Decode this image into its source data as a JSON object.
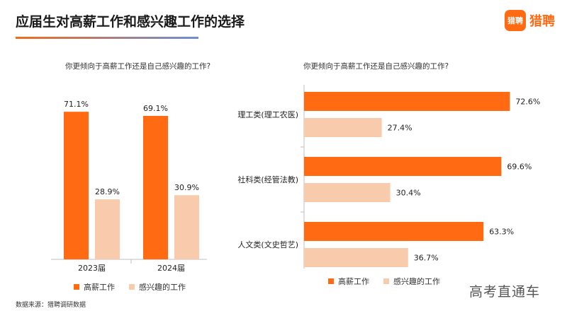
{
  "page": {
    "title": "应届生对高薪工作和感兴趣工作的选择",
    "logo_mark": "猎聘",
    "logo_text": "猎聘",
    "source": "数据来源：猎聘调研数据",
    "watermark": "高考直通车"
  },
  "colors": {
    "high_pay": "#ff6a13",
    "interest": "#f8cbad",
    "axis": "#bfbfbf"
  },
  "legend": {
    "series": [
      "高薪工作",
      "感兴趣的工作"
    ]
  },
  "chart_data": [
    {
      "type": "bar",
      "title": "你更倾向于高薪工作还是自己感兴趣的工作?",
      "categories": [
        "2023届",
        "2024届"
      ],
      "series": [
        {
          "name": "高薪工作",
          "values": [
            71.1,
            69.1
          ],
          "labels": [
            "71.1%",
            "69.1%"
          ]
        },
        {
          "name": "感兴趣的工作",
          "values": [
            28.9,
            30.9
          ],
          "labels": [
            "28.9%",
            "30.9%"
          ]
        }
      ],
      "ylim": [
        0,
        80
      ],
      "legend_position": "bottom"
    },
    {
      "type": "bar",
      "orientation": "horizontal",
      "title": "你更倾向于高薪工作还是自己感兴趣的工作?",
      "categories": [
        "理工类(理工农医)",
        "社科类(经管法教)",
        "人文类(文史哲艺)"
      ],
      "series": [
        {
          "name": "高薪工作",
          "values": [
            72.6,
            69.6,
            63.3
          ],
          "labels": [
            "72.6%",
            "69.6%",
            "63.3%"
          ]
        },
        {
          "name": "感兴趣的工作",
          "values": [
            27.4,
            30.4,
            36.7
          ],
          "labels": [
            "27.4%",
            "30.4%",
            "36.7%"
          ]
        }
      ],
      "xlim": [
        0,
        80
      ],
      "legend_position": "bottom"
    }
  ]
}
